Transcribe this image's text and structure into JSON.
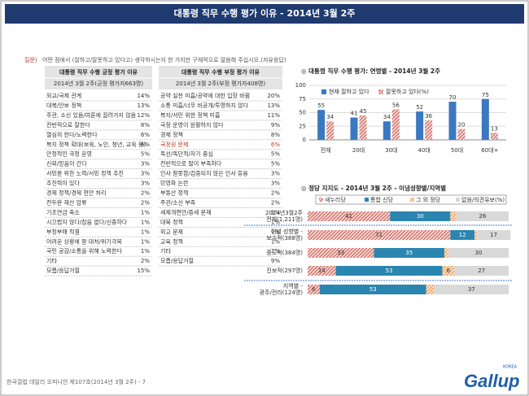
{
  "header": {
    "title": "대통령 직무 수행 평가 이유 - 2014년 3월 2주"
  },
  "question": {
    "prefix": "질문)",
    "text": "어떤 점에서 (잘하고/잘못하고 있다고) 생각하시는지 한 가지만 구체적으로 말씀해 주십시오.(자유응답)"
  },
  "tables": [
    {
      "title": "대통령 직무 수행 긍정 평가 이유",
      "subtitle": "2014년 3월 2주(긍정 평가자663명)",
      "rows": [
        [
          "외교/국제 관계",
          "14%"
        ],
        [
          "대북/안보 정책",
          "13%"
        ],
        [
          "주관, 소신 있음/여론에 끌려가지 않음",
          "12%"
        ],
        [
          "전반적으로 잘한다",
          "8%"
        ],
        [
          "열심히 한다/노력한다",
          "6%"
        ],
        [
          "복지 정책 확대(보육, 노인, 청년, 교육 등)",
          "6%"
        ],
        [
          "안정적인 국정 운영",
          "5%"
        ],
        [
          "신뢰/믿음이 간다",
          "3%"
        ],
        [
          "서민을 위한 노력/서민 정책 추진",
          "3%"
        ],
        [
          "추진력이 있다",
          "3%"
        ],
        [
          "경제 정책/경제 현안 처리",
          "2%"
        ],
        [
          "전두환 재산 압류",
          "2%"
        ],
        [
          "기초연금 축소",
          "1%"
        ],
        [
          "시끄럽지 않다/잡음 없다/신중하다",
          "1%"
        ],
        [
          "부정부패 척결",
          "1%"
        ],
        [
          "어려운 상황에 잘 대처/위기극복",
          "1%"
        ],
        [
          "국민 공감/소통을 위해 노력한다",
          "1%"
        ],
        [
          "기타",
          "2%"
        ],
        [
          "모름/응답거절",
          "15%"
        ]
      ]
    },
    {
      "title": "대통령 직무 수행 부정 평가 이유",
      "subtitle": "2014년 3월 2주(부정 평가자408명)",
      "highlight_row": 5,
      "rows": [
        [
          "공약 실천 미흡/공약에 대한 입장 바뀜",
          "20%"
        ],
        [
          "소통 미흡/너무 비공개/투명하지 않다",
          "13%"
        ],
        [
          "복지/서민 위한 정책 미흡",
          "11%"
        ],
        [
          "국정 운영이 원활하지 않다",
          "9%"
        ],
        [
          "경제 정책",
          "8%"
        ],
        [
          "국정원 문제",
          "6%"
        ],
        [
          "독선/독단적/자기 중심",
          "5%"
        ],
        [
          "전반적으로 많이 부족하다",
          "5%"
        ],
        [
          "인사 잘못함/검증되지 않은 인사 등용",
          "3%"
        ],
        [
          "민영화 논란",
          "3%"
        ],
        [
          "부동산 정책",
          "2%"
        ],
        [
          "주관/소신 부족",
          "2%"
        ],
        [
          "세제개편안/증세 문제",
          "1%"
        ],
        [
          "대북 정책",
          "1%"
        ],
        [
          "외교 문제",
          "1%"
        ],
        [
          "교육 정책",
          "1%"
        ],
        [
          "기타",
          "1%"
        ],
        [
          "모름/응답거절",
          "9%"
        ]
      ]
    }
  ],
  "chart_data": [
    {
      "type": "bar",
      "title": "◎  대통령 직무 수행 평가: 연령별 - 2014년 3월 2주",
      "categories": [
        "전체",
        "20대",
        "30대",
        "40대",
        "50대",
        "60대+"
      ],
      "series": [
        {
          "name": "현재 잘하고 있다",
          "color": "#3b78c2",
          "values": [
            55,
            41,
            34,
            52,
            70,
            75
          ]
        },
        {
          "name": "잘못하고 있다(%)",
          "color": "#c0392b",
          "values": [
            34,
            45,
            56,
            36,
            20,
            13
          ]
        }
      ],
      "ylim": [
        0,
        100
      ],
      "yticks": [
        0,
        25,
        50,
        75,
        100
      ],
      "grid": true
    },
    {
      "type": "stacked_hbar",
      "title": "◎  정당 지지도 - 2014년 3월 2주 - 이념성향별/지역별",
      "categories": [
        [
          "2014년3월2주",
          "전체(1,211명)"
        ],
        [
          "이념 성향별 -",
          "보수적(388명)"
        ],
        [
          "중도적(384명)"
        ],
        [
          "진보적(297명)"
        ],
        [
          "지역별 -",
          "광주/전라(124명)"
        ]
      ],
      "series": [
        {
          "name": "새누리당",
          "color": "#c0392b",
          "values": [
            41,
            71,
            33,
            14,
            6
          ]
        },
        {
          "name": "통합 신당",
          "color": "#2a86b0",
          "values": [
            30,
            12,
            35,
            53,
            53
          ]
        },
        {
          "name": "그 외 정당",
          "color": "#e67e22",
          "values": [
            3,
            1,
            2,
            6,
            4
          ]
        },
        {
          "name": "없음/의견유보(%)",
          "color": "#d9d9d9",
          "values": [
            26,
            17,
            30,
            27,
            37
          ]
        }
      ],
      "xlim": [
        0,
        100
      ]
    }
  ],
  "footer": {
    "text": "한국갤럽 데일리 오피니언 제107호(2014년 3월 2주) - 7",
    "logo": "Gallup",
    "logo_sub": "KOREA"
  }
}
